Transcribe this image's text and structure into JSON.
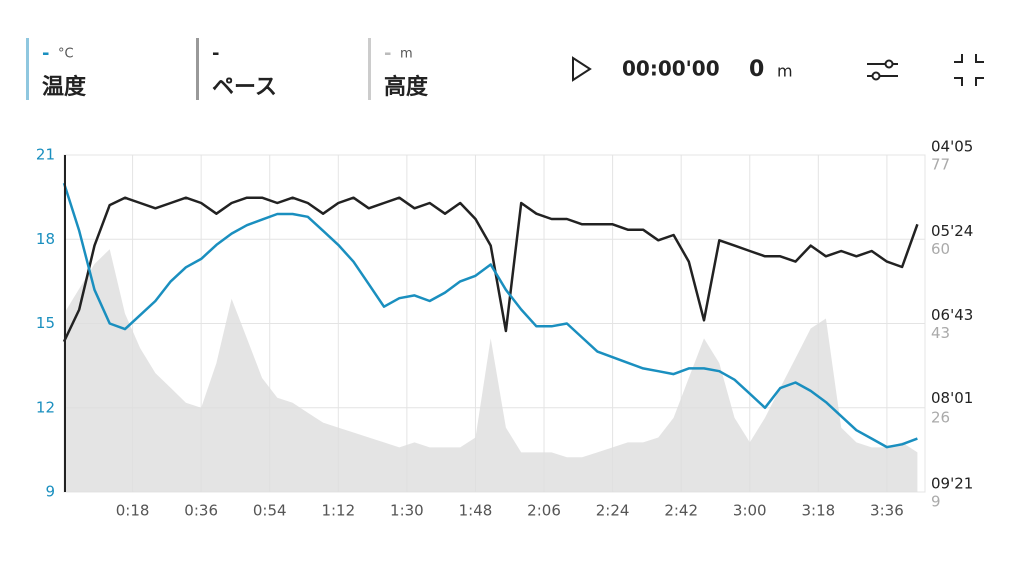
{
  "header": {
    "timer": "00:00'00",
    "distance": "0",
    "distance_unit": "m"
  },
  "chart_data": {
    "type": "line",
    "x": [
      0,
      4,
      8,
      12,
      16,
      20,
      24,
      28,
      32,
      36,
      40,
      44,
      48,
      52,
      56,
      60,
      64,
      68,
      72,
      76,
      80,
      84,
      88,
      92,
      96,
      100,
      104,
      108,
      112,
      116,
      120,
      124,
      128,
      132,
      136,
      140,
      144,
      148,
      152,
      156,
      160,
      164,
      168,
      172,
      176,
      180,
      184,
      188,
      192,
      196,
      200,
      204,
      208,
      212,
      216,
      220,
      224
    ],
    "xlim": [
      0,
      226
    ],
    "xticks": [
      {
        "value": 18,
        "label": "0:18"
      },
      {
        "value": 36,
        "label": "0:36"
      },
      {
        "value": 54,
        "label": "0:54"
      },
      {
        "value": 72,
        "label": "1:12"
      },
      {
        "value": 90,
        "label": "1:30"
      },
      {
        "value": 108,
        "label": "1:48"
      },
      {
        "value": 126,
        "label": "2:06"
      },
      {
        "value": 144,
        "label": "2:24"
      },
      {
        "value": 162,
        "label": "2:42"
      },
      {
        "value": 180,
        "label": "3:00"
      },
      {
        "value": 198,
        "label": "3:18"
      },
      {
        "value": 216,
        "label": "3:36"
      }
    ],
    "ylim": [
      9,
      21
    ],
    "yticks": [
      9,
      12,
      15,
      18,
      21
    ],
    "y2lim": [
      561,
      245
    ],
    "y2ticks": [
      {
        "value": 561,
        "label": "09'21"
      },
      {
        "value": 481,
        "label": "08'01"
      },
      {
        "value": 403,
        "label": "06'43"
      },
      {
        "value": 324,
        "label": "05'24"
      },
      {
        "value": 245,
        "label": "04'05"
      }
    ],
    "y3lim": [
      9,
      77
    ],
    "y3ticks": [
      9,
      26,
      43,
      60,
      77
    ],
    "grid": true,
    "series": [
      {
        "name": "温度",
        "unit": "°C",
        "current": "-",
        "color": "#1a8fbf",
        "axis": "y",
        "values": [
          20.0,
          18.3,
          16.2,
          15.0,
          14.8,
          15.3,
          15.8,
          16.5,
          17.0,
          17.3,
          17.8,
          18.2,
          18.5,
          18.7,
          18.9,
          18.9,
          18.8,
          18.3,
          17.8,
          17.2,
          16.4,
          15.6,
          15.9,
          16.0,
          15.8,
          16.1,
          16.5,
          16.7,
          17.1,
          16.2,
          15.5,
          14.9,
          14.9,
          15.0,
          14.5,
          14.0,
          13.8,
          13.6,
          13.4,
          13.3,
          13.2,
          13.4,
          13.4,
          13.3,
          13.0,
          12.5,
          12.0,
          12.7,
          12.9,
          12.6,
          12.2,
          11.7,
          11.2,
          10.9,
          10.6,
          10.7,
          10.9
        ]
      },
      {
        "name": "ペース",
        "current": "-",
        "color": "#222222",
        "axis": "y2",
        "values": [
          420,
          390,
          330,
          292,
          285,
          290,
          295,
          290,
          285,
          290,
          300,
          290,
          285,
          285,
          290,
          285,
          290,
          300,
          290,
          285,
          295,
          290,
          285,
          295,
          290,
          300,
          290,
          305,
          330,
          410,
          290,
          300,
          305,
          305,
          310,
          310,
          310,
          315,
          315,
          325,
          320,
          345,
          400,
          325,
          330,
          335,
          340,
          340,
          345,
          330,
          340,
          335,
          340,
          335,
          345,
          350,
          310
        ]
      },
      {
        "name": "高度",
        "unit": "m",
        "current": "-",
        "color": "#dddddd",
        "axis": "y3",
        "values": [
          45,
          50,
          55,
          58,
          45,
          38,
          33,
          30,
          27,
          26,
          35,
          48,
          40,
          32,
          28,
          27,
          25,
          23,
          22,
          21,
          20,
          19,
          18,
          19,
          18,
          18,
          18,
          20,
          40,
          22,
          17,
          17,
          17,
          16,
          16,
          17,
          18,
          19,
          19,
          20,
          24,
          32,
          40,
          35,
          24,
          19,
          24,
          30,
          36,
          42,
          44,
          22,
          19,
          18,
          18,
          19,
          17
        ]
      }
    ]
  }
}
